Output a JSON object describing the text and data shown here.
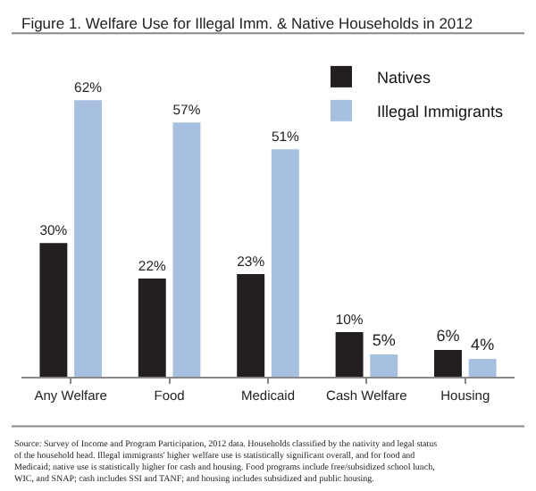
{
  "chart_data": {
    "type": "bar",
    "title": "Figure 1. Welfare Use for Illegal Imm. & Native Households in 2012",
    "categories": [
      "Any Welfare",
      "Food",
      "Medicaid",
      "Cash Welfare",
      "Housing"
    ],
    "series": [
      {
        "name": "Natives",
        "color": "#231f20",
        "values": [
          30,
          22,
          23,
          10,
          6
        ],
        "value_labels": [
          "30%",
          "22%",
          "23%",
          "10%",
          "6%"
        ]
      },
      {
        "name": "Illegal Immigrants",
        "color": "#a7c0e0",
        "values": [
          62,
          57,
          51,
          5,
          4
        ],
        "value_labels": [
          "62%",
          "57%",
          "51%",
          "5%",
          "4%"
        ]
      }
    ],
    "legend": "top right",
    "annotations": [
      "Source: Survey of Income and Program Participation, 2012 data. Households classified by the nativity and legal status of the household head. Illegal immigrants' higher welfare use is statistically significant overall, and for food and Medicaid; native use is statistically higher for cash and housing. Food programs include free/subsidized school lunch, WIC, and SNAP; cash includes SSI and TANF; and housing includes subsidized and public housing."
    ]
  }
}
